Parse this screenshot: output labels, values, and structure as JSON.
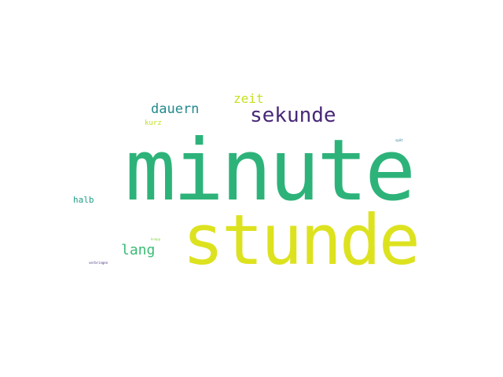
{
  "words": {
    "minute": {
      "text": "minute",
      "color": "#2db37a"
    },
    "stunde": {
      "text": "stunde",
      "color": "#dde21f"
    },
    "sekunde": {
      "text": "sekunde",
      "color": "#482878"
    },
    "dauern": {
      "text": "dauern",
      "color": "#23898e"
    },
    "zeit": {
      "text": "zeit",
      "color": "#c8e020"
    },
    "lang": {
      "text": "lang",
      "color": "#3bbb75"
    },
    "halb": {
      "text": "halb",
      "color": "#1f9f88"
    },
    "kurz": {
      "text": "kurz",
      "color": "#c2df23"
    },
    "tiny_a": {
      "text": "spät",
      "color": "#2a788e"
    },
    "tiny_b": {
      "text": "knapp",
      "color": "#86d549"
    },
    "tiny_c": {
      "text": "verbringen",
      "color": "#46327e"
    }
  }
}
